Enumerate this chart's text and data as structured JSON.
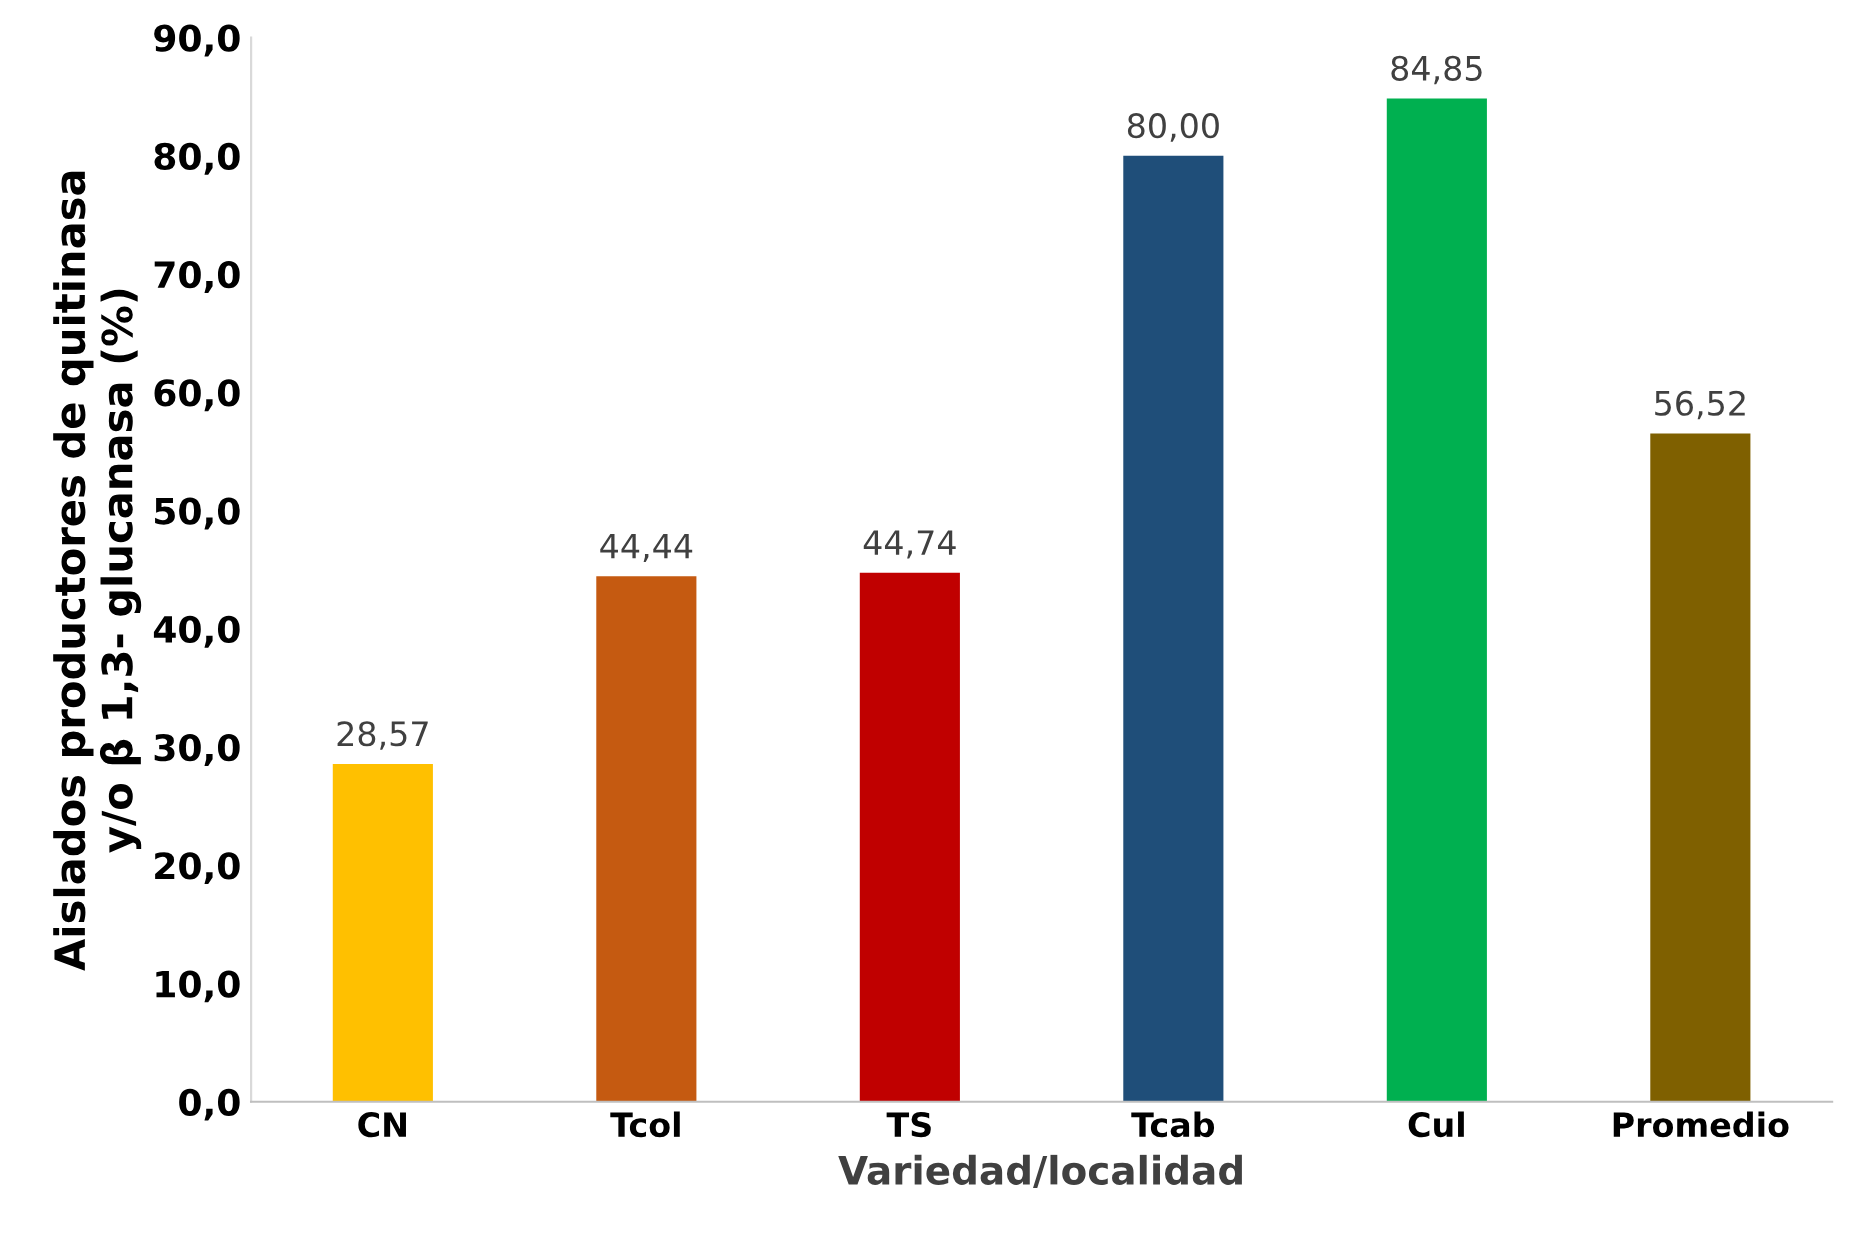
{
  "chart_data": {
    "type": "bar",
    "xlabel": "Variedad/localidad",
    "ylabel": "Aislados productores de quitinasa\ny/o β 1,3- glucanasa (%)",
    "categories": [
      "CN",
      "Tcol",
      "TS",
      "Tcab",
      "Cul",
      "Promedio"
    ],
    "values": [
      28.57,
      44.44,
      44.74,
      80.0,
      84.85,
      56.52
    ],
    "colors": [
      "#ffc000",
      "#c55a11",
      "#c00000",
      "#1f4e79",
      "#00b050",
      "#7f6000"
    ],
    "value_labels": [
      "28,57",
      "44,44",
      "44,74",
      "80,00",
      "84,85",
      "56,52"
    ],
    "ylim": [
      0,
      90
    ],
    "yticks": [
      {
        "value": 0,
        "label": "0,0"
      },
      {
        "value": 10,
        "label": "10,0"
      },
      {
        "value": 20,
        "label": "20,0"
      },
      {
        "value": 30,
        "label": "30,0"
      },
      {
        "value": 40,
        "label": "40,0"
      },
      {
        "value": 50,
        "label": "50,0"
      },
      {
        "value": 60,
        "label": "60,0"
      },
      {
        "value": 70,
        "label": "70,0"
      },
      {
        "value": 80,
        "label": "80,0"
      },
      {
        "value": 90,
        "label": "90,0"
      }
    ],
    "grid": false,
    "legend": false
  }
}
